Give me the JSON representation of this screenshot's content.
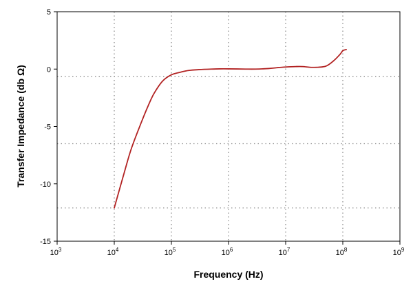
{
  "chart_data": {
    "type": "line",
    "xlabel": "Frequency (Hz)",
    "ylabel": "Transfer Impedance (db Ω)",
    "x_scale": "log",
    "xlim": [
      1000,
      1000000000
    ],
    "ylim": [
      -15,
      5
    ],
    "x_ticks": [
      {
        "value": 1000,
        "base": "10",
        "exp": "3"
      },
      {
        "value": 10000,
        "base": "10",
        "exp": "4"
      },
      {
        "value": 100000,
        "base": "10",
        "exp": "5"
      },
      {
        "value": 1000000,
        "base": "10",
        "exp": "6"
      },
      {
        "value": 10000000,
        "base": "10",
        "exp": "7"
      },
      {
        "value": 100000000,
        "base": "10",
        "exp": "8"
      },
      {
        "value": 1000000000,
        "base": "10",
        "exp": "9"
      }
    ],
    "y_ticks": [
      {
        "value": 5,
        "label": "5"
      },
      {
        "value": 0,
        "label": "0"
      },
      {
        "value": -5,
        "label": "-5"
      },
      {
        "value": -10,
        "label": "-10"
      },
      {
        "value": -15,
        "label": "-15"
      }
    ],
    "vertical_grid": [
      10000,
      100000,
      1000000,
      10000000,
      100000000
    ],
    "horizontal_grid": [
      -0.65,
      -6.5,
      -12.1
    ],
    "grid": true,
    "legend": "none",
    "series": [
      {
        "color": "#b22222",
        "x": [
          10000,
          15000,
          20000,
          30000,
          40000,
          50000,
          70000,
          100000,
          150000,
          200000,
          300000,
          500000,
          700000,
          1000000,
          2000000,
          3000000,
          5000000,
          7000000,
          10000000,
          15000000,
          20000000,
          30000000,
          50000000,
          70000000,
          90000000,
          100000000,
          115000000
        ],
        "y": [
          -12.1,
          -9.0,
          -6.9,
          -4.6,
          -3.1,
          -2.1,
          -1.05,
          -0.5,
          -0.25,
          -0.12,
          -0.05,
          0.0,
          0.02,
          0.02,
          0.0,
          0.0,
          0.05,
          0.12,
          0.18,
          0.22,
          0.22,
          0.15,
          0.25,
          0.75,
          1.3,
          1.6,
          1.7
        ]
      }
    ]
  }
}
